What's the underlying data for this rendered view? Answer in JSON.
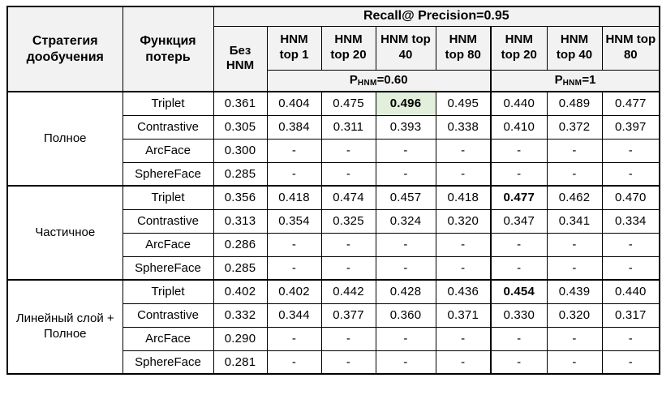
{
  "table": {
    "title": "Recall@ Precision=0.95",
    "strategy_header": "Стратегия дообучения",
    "loss_header": "Функция потерь",
    "no_hnm_header": "Без HNM",
    "hnm_headers": [
      "HNM top 1",
      "HNM top 20",
      "HNM top 40",
      "HNM top 80",
      "HNM top 20",
      "HNM top 40",
      "HNM top 80"
    ],
    "p_groups": [
      {
        "prefix": "P",
        "sub": "HNM",
        "eq": "=0.60"
      },
      {
        "prefix": "P",
        "sub": "HNM",
        "eq": "=1"
      }
    ],
    "colors": {
      "header_bg": "#f2f2f2",
      "highlight_bg": "#e2efda",
      "border": "#000000"
    },
    "groups": [
      {
        "label": "Полное",
        "rows": [
          {
            "loss": "Triplet",
            "values": [
              "0.361",
              "0.404",
              "0.475",
              {
                "v": "0.496",
                "bold": true,
                "highlight": true
              },
              "0.495",
              "0.440",
              "0.489",
              "0.477"
            ]
          },
          {
            "loss": "Contrastive",
            "values": [
              "0.305",
              "0.384",
              "0.311",
              "0.393",
              "0.338",
              "0.410",
              "0.372",
              "0.397"
            ]
          },
          {
            "loss": "ArcFace",
            "values": [
              "0.300",
              "-",
              "-",
              "-",
              "-",
              "-",
              "-",
              "-"
            ]
          },
          {
            "loss": "SphereFace",
            "values": [
              "0.285",
              "-",
              "-",
              "-",
              "-",
              "-",
              "-",
              "-"
            ]
          }
        ]
      },
      {
        "label": "Частичное",
        "rows": [
          {
            "loss": "Triplet",
            "values": [
              "0.356",
              "0.418",
              "0.474",
              "0.457",
              "0.418",
              {
                "v": "0.477",
                "bold": true
              },
              "0.462",
              "0.470"
            ]
          },
          {
            "loss": "Contrastive",
            "values": [
              "0.313",
              "0.354",
              "0.325",
              "0.324",
              "0.320",
              "0.347",
              "0.341",
              "0.334"
            ]
          },
          {
            "loss": "ArcFace",
            "values": [
              "0.286",
              "-",
              "-",
              "-",
              "-",
              "-",
              "-",
              "-"
            ]
          },
          {
            "loss": "SphereFace",
            "values": [
              "0.285",
              "-",
              "-",
              "-",
              "-",
              "-",
              "-",
              "-"
            ]
          }
        ]
      },
      {
        "label": "Линейный слой + Полное",
        "rows": [
          {
            "loss": "Triplet",
            "values": [
              "0.402",
              "0.402",
              "0.442",
              "0.428",
              "0.436",
              {
                "v": "0.454",
                "bold": true
              },
              "0.439",
              "0.440"
            ]
          },
          {
            "loss": "Contrastive",
            "values": [
              "0.332",
              "0.344",
              "0.377",
              "0.360",
              "0.371",
              "0.330",
              "0.320",
              "0.317"
            ]
          },
          {
            "loss": "ArcFace",
            "values": [
              "0.290",
              "-",
              "-",
              "-",
              "-",
              "-",
              "-",
              "-"
            ]
          },
          {
            "loss": "SphereFace",
            "values": [
              "0.281",
              "-",
              "-",
              "-",
              "-",
              "-",
              "-",
              "-"
            ]
          }
        ]
      }
    ]
  }
}
